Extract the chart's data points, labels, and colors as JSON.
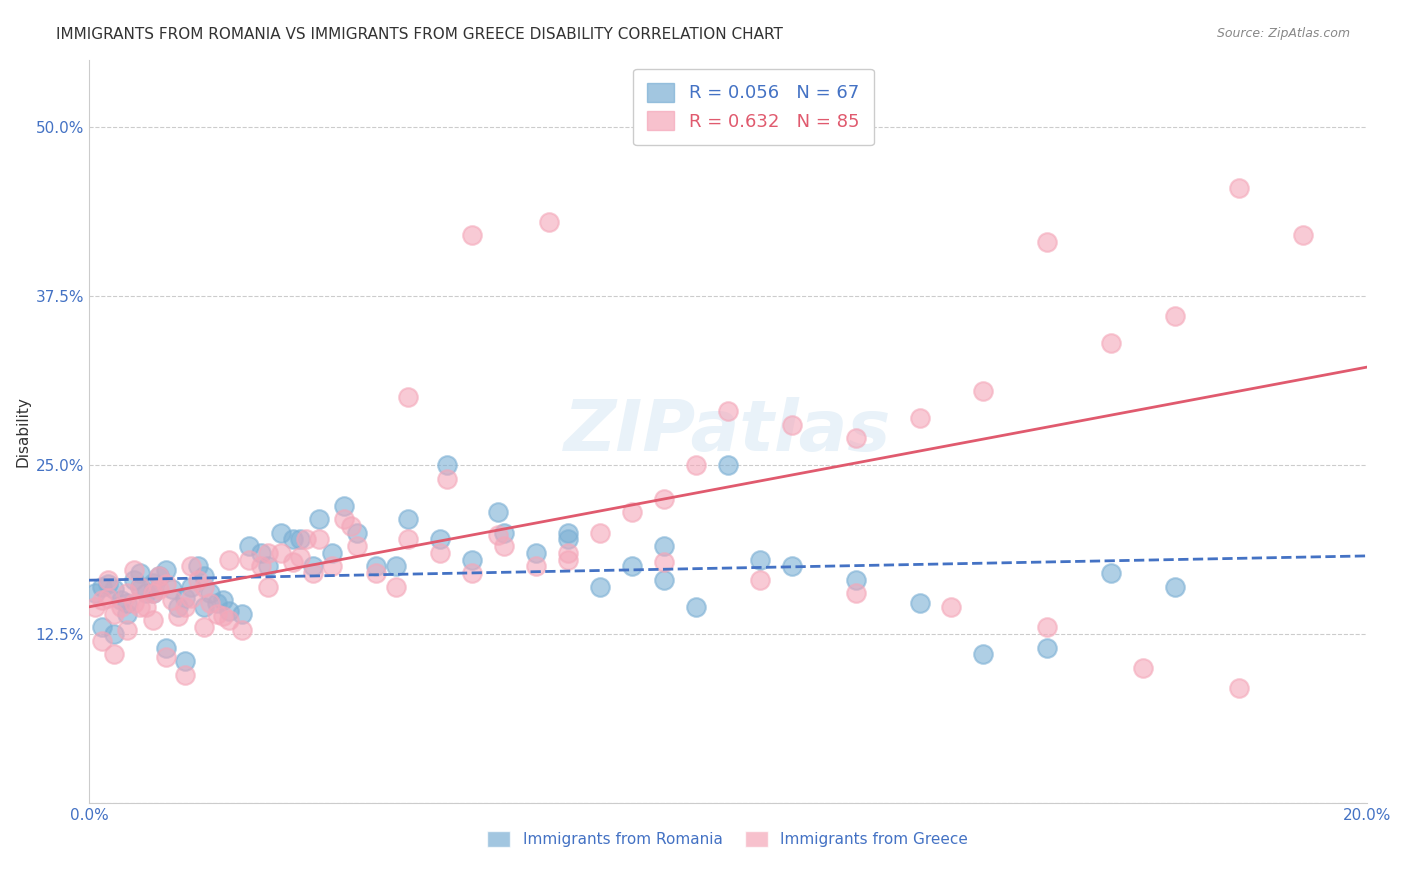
{
  "title": "IMMIGRANTS FROM ROMANIA VS IMMIGRANTS FROM GREECE DISABILITY CORRELATION CHART",
  "source": "Source: ZipAtlas.com",
  "xlabel_color": "#4472c4",
  "ylabel": "Disability",
  "xlim": [
    0.0,
    0.2
  ],
  "ylim": [
    0.0,
    0.55
  ],
  "xticks": [
    0.0,
    0.05,
    0.1,
    0.15,
    0.2
  ],
  "xtick_labels": [
    "0.0%",
    "",
    "",
    "",
    "20.0%"
  ],
  "yticks": [
    0.0,
    0.125,
    0.25,
    0.375,
    0.5
  ],
  "ytick_labels": [
    "",
    "12.5%",
    "25.0%",
    "37.5%",
    "50.0%"
  ],
  "romania_color": "#7bafd4",
  "greece_color": "#f4a7b9",
  "romania_line_color": "#4472c4",
  "greece_line_color": "#e05a6e",
  "romania_R": 0.056,
  "romania_N": 67,
  "greece_R": 0.632,
  "greece_N": 85,
  "legend_label_romania": "Immigrants from Romania",
  "legend_label_greece": "Immigrants from Greece",
  "watermark": "ZIPatlas",
  "background_color": "#ffffff",
  "grid_color": "#cccccc",
  "romania_x": [
    0.001,
    0.002,
    0.003,
    0.004,
    0.005,
    0.006,
    0.007,
    0.008,
    0.009,
    0.01,
    0.011,
    0.012,
    0.013,
    0.014,
    0.015,
    0.016,
    0.017,
    0.018,
    0.019,
    0.02,
    0.022,
    0.025,
    0.027,
    0.03,
    0.033,
    0.035,
    0.038,
    0.04,
    0.045,
    0.05,
    0.055,
    0.06,
    0.065,
    0.07,
    0.075,
    0.08,
    0.085,
    0.09,
    0.095,
    0.1,
    0.11,
    0.12,
    0.13,
    0.14,
    0.15,
    0.16,
    0.17,
    0.002,
    0.004,
    0.006,
    0.008,
    0.01,
    0.012,
    0.015,
    0.018,
    0.021,
    0.024,
    0.028,
    0.032,
    0.036,
    0.042,
    0.048,
    0.056,
    0.064,
    0.075,
    0.09,
    0.105
  ],
  "romania_y": [
    0.155,
    0.16,
    0.162,
    0.158,
    0.15,
    0.148,
    0.165,
    0.17,
    0.155,
    0.163,
    0.168,
    0.172,
    0.158,
    0.145,
    0.152,
    0.16,
    0.175,
    0.168,
    0.155,
    0.148,
    0.142,
    0.19,
    0.185,
    0.2,
    0.195,
    0.175,
    0.185,
    0.22,
    0.175,
    0.21,
    0.195,
    0.18,
    0.2,
    0.185,
    0.195,
    0.16,
    0.175,
    0.165,
    0.145,
    0.25,
    0.175,
    0.165,
    0.148,
    0.11,
    0.115,
    0.17,
    0.16,
    0.13,
    0.125,
    0.14,
    0.16,
    0.155,
    0.115,
    0.105,
    0.145,
    0.15,
    0.14,
    0.175,
    0.195,
    0.21,
    0.2,
    0.175,
    0.25,
    0.215,
    0.2,
    0.19,
    0.18
  ],
  "greece_x": [
    0.001,
    0.002,
    0.003,
    0.004,
    0.005,
    0.006,
    0.007,
    0.008,
    0.009,
    0.01,
    0.011,
    0.012,
    0.013,
    0.014,
    0.015,
    0.016,
    0.017,
    0.018,
    0.019,
    0.02,
    0.022,
    0.025,
    0.027,
    0.03,
    0.033,
    0.035,
    0.038,
    0.04,
    0.045,
    0.05,
    0.055,
    0.06,
    0.065,
    0.07,
    0.075,
    0.08,
    0.085,
    0.09,
    0.095,
    0.1,
    0.11,
    0.12,
    0.13,
    0.14,
    0.15,
    0.16,
    0.17,
    0.18,
    0.19,
    0.002,
    0.004,
    0.006,
    0.008,
    0.01,
    0.012,
    0.015,
    0.018,
    0.021,
    0.024,
    0.028,
    0.032,
    0.036,
    0.042,
    0.048,
    0.056,
    0.064,
    0.075,
    0.09,
    0.105,
    0.12,
    0.135,
    0.15,
    0.165,
    0.18,
    0.003,
    0.007,
    0.011,
    0.016,
    0.022,
    0.028,
    0.034,
    0.041,
    0.05,
    0.06,
    0.072
  ],
  "greece_y": [
    0.145,
    0.15,
    0.152,
    0.14,
    0.145,
    0.155,
    0.148,
    0.16,
    0.145,
    0.155,
    0.158,
    0.162,
    0.15,
    0.138,
    0.145,
    0.152,
    0.165,
    0.16,
    0.148,
    0.14,
    0.135,
    0.18,
    0.175,
    0.185,
    0.182,
    0.17,
    0.175,
    0.21,
    0.17,
    0.195,
    0.185,
    0.17,
    0.19,
    0.175,
    0.18,
    0.2,
    0.215,
    0.225,
    0.25,
    0.29,
    0.28,
    0.27,
    0.285,
    0.305,
    0.415,
    0.34,
    0.36,
    0.455,
    0.42,
    0.12,
    0.11,
    0.128,
    0.145,
    0.135,
    0.108,
    0.095,
    0.13,
    0.138,
    0.128,
    0.16,
    0.178,
    0.195,
    0.19,
    0.16,
    0.24,
    0.198,
    0.185,
    0.178,
    0.165,
    0.155,
    0.145,
    0.13,
    0.1,
    0.085,
    0.165,
    0.172,
    0.168,
    0.175,
    0.18,
    0.185,
    0.195,
    0.205,
    0.3,
    0.42,
    0.43
  ]
}
